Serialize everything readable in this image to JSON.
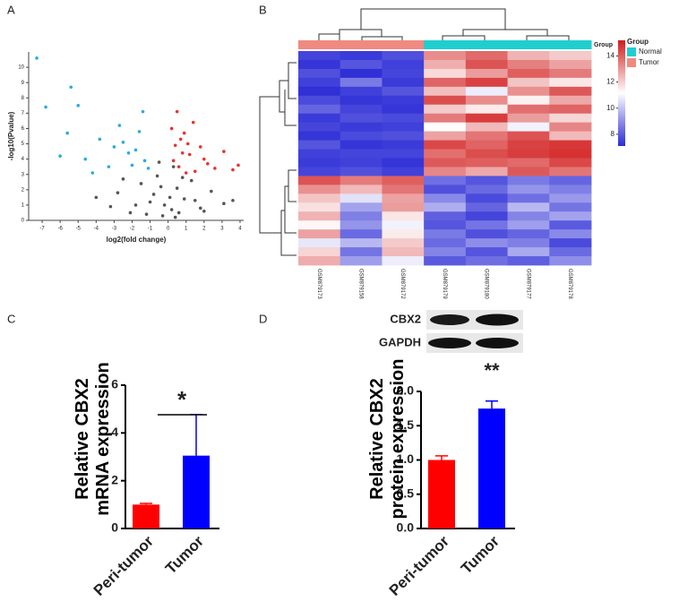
{
  "chart_data": [
    {
      "type": "scatter",
      "panel": "A",
      "xlabel": "log2(fold change)",
      "ylabel": "-log10(Pvalue)",
      "xlim": [
        -7.75,
        4.2
      ],
      "ylim": [
        0,
        11
      ],
      "xticks": [
        -7,
        -6,
        -5,
        -4,
        -3,
        -2,
        -1,
        0,
        1,
        2,
        3,
        4
      ],
      "yticks": [
        0,
        1,
        2,
        3,
        4,
        5,
        6,
        7,
        8,
        9,
        10
      ],
      "series": [
        {
          "color": "#555555",
          "x": [
            -3.2,
            -2.8,
            -2.1,
            -1.5,
            -1.0,
            -0.6,
            -0.3,
            0.2,
            0.5,
            0.9,
            1.3,
            1.8,
            2.4,
            3.1,
            -2.5,
            -1.8,
            -1.2,
            -0.8,
            -0.4,
            0.1,
            0.4,
            0.8,
            1.5,
            2.0,
            -0.5,
            0.3,
            -0.2,
            0.6,
            -4.0,
            3.6
          ],
          "values": [
            0.9,
            1.8,
            0.5,
            2.4,
            1.2,
            2.9,
            0.3,
            0.7,
            2.1,
            1.4,
            2.6,
            0.8,
            1.9,
            1.1,
            2.7,
            1.0,
            0.4,
            1.7,
            2.2,
            1.5,
            0.2,
            2.8,
            1.3,
            0.6,
            3.8,
            3.5,
            1.0,
            0.5,
            1.5,
            1.3
          ]
        },
        {
          "color": "#29abe2",
          "x": [
            -7.3,
            -6.8,
            -5.4,
            -5.0,
            -4.6,
            -3.8,
            -3.3,
            -2.7,
            -2.2,
            -1.6,
            -1.3,
            -1.1,
            -6.0,
            -4.2,
            -3.0,
            -2.0,
            -1.4,
            -5.6,
            -2.5,
            -1.8
          ],
          "values": [
            10.6,
            7.4,
            8.7,
            7.5,
            4.0,
            5.3,
            3.5,
            6.2,
            4.4,
            5.8,
            3.9,
            3.4,
            4.2,
            3.1,
            4.8,
            3.6,
            7.1,
            5.7,
            5.1,
            4.6
          ]
        },
        {
          "color": "#e8322f",
          "x": [
            0.2,
            0.4,
            0.6,
            0.9,
            1.2,
            1.5,
            1.8,
            2.2,
            2.6,
            3.1,
            3.6,
            0.3,
            0.7,
            1.0,
            1.4,
            2.0,
            0.5,
            0.8,
            1.1,
            3.9
          ],
          "values": [
            6.0,
            4.9,
            3.5,
            5.7,
            4.3,
            3.2,
            4.8,
            3.7,
            3.4,
            4.5,
            3.3,
            3.9,
            5.3,
            3.1,
            6.4,
            4.0,
            7.1,
            4.4,
            5.0,
            3.6
          ]
        }
      ]
    },
    {
      "type": "heatmap",
      "panel": "B",
      "annotation_title": "Group",
      "legend_title": "Group",
      "columns": [
        "GSM879173",
        "GSM879158",
        "GSM879172",
        "GSM879179",
        "GSM879180",
        "GSM879177",
        "GSM879178"
      ],
      "column_groups": [
        "Tumor",
        "Tumor",
        "Tumor",
        "Normal",
        "Normal",
        "Normal",
        "Normal"
      ],
      "groups": [
        {
          "name": "Normal",
          "color": "#1fcfcf"
        },
        {
          "name": "Tumor",
          "color": "#f08a80"
        }
      ],
      "colors": [
        "#2b2bd6",
        "#ffffff",
        "#d11b1b"
      ],
      "clim": [
        7.1,
        15.2
      ],
      "cticks": [
        8,
        10,
        12,
        14
      ],
      "values": [
        [
          7.6,
          7.4,
          7.8,
          13.2,
          13.8,
          12.5,
          12.1
        ],
        [
          7.3,
          7.9,
          7.5,
          12.6,
          14.2,
          13.4,
          12.8
        ],
        [
          7.8,
          7.2,
          7.6,
          11.8,
          12.9,
          14.0,
          13.5
        ],
        [
          7.5,
          8.6,
          7.4,
          13.9,
          14.5,
          12.2,
          11.6
        ],
        [
          7.2,
          7.5,
          7.9,
          12.3,
          10.8,
          13.1,
          14.1
        ],
        [
          7.7,
          7.3,
          7.4,
          14.3,
          13.2,
          11.4,
          12.7
        ],
        [
          8.2,
          7.6,
          7.3,
          12.1,
          11.5,
          13.7,
          13.9
        ],
        [
          7.4,
          7.8,
          7.7,
          13.5,
          14.6,
          12.9,
          11.9
        ],
        [
          7.6,
          7.4,
          7.5,
          11.2,
          12.4,
          10.9,
          13.3
        ],
        [
          7.3,
          7.7,
          7.8,
          12.8,
          13.6,
          14.2,
          12.4
        ],
        [
          7.9,
          7.3,
          7.4,
          14.4,
          13.9,
          14.5,
          14.7
        ],
        [
          7.5,
          7.6,
          7.6,
          13.7,
          14.3,
          14.6,
          14.8
        ],
        [
          7.4,
          7.5,
          7.3,
          14.1,
          14.0,
          13.8,
          14.4
        ],
        [
          7.6,
          7.8,
          7.5,
          13.3,
          12.7,
          14.1,
          13.6
        ],
        [
          14.2,
          13.5,
          14.0,
          8.4,
          7.9,
          8.6,
          8.2
        ],
        [
          13.1,
          12.4,
          13.6,
          7.8,
          8.3,
          9.1,
          8.7
        ],
        [
          12.2,
          10.6,
          12.8,
          8.9,
          7.7,
          8.4,
          9.2
        ],
        [
          11.7,
          9.4,
          12.9,
          9.6,
          8.2,
          9.8,
          8.5
        ],
        [
          12.5,
          8.7,
          11.6,
          8.1,
          7.6,
          8.8,
          9.4
        ],
        [
          11.3,
          9.1,
          10.9,
          7.9,
          8.5,
          9.3,
          8.0
        ],
        [
          12.8,
          8.3,
          11.5,
          8.6,
          7.8,
          8.2,
          8.9
        ],
        [
          10.7,
          9.8,
          12.1,
          8.3,
          9.0,
          8.7,
          7.7
        ],
        [
          11.9,
          8.5,
          12.4,
          8.8,
          7.9,
          9.5,
          8.3
        ],
        [
          12.6,
          9.3,
          10.8,
          8.0,
          8.4,
          8.1,
          9.0
        ]
      ]
    },
    {
      "type": "bar",
      "panel": "C",
      "ylabel": "Relative CBX2 mRNA expression",
      "annotation": "*",
      "categories": [
        "Peri-tumor",
        "Tumor"
      ],
      "values": [
        1.0,
        3.05
      ],
      "errors": [
        0.05,
        1.72
      ],
      "colors": [
        "#ff0000",
        "#0000ff"
      ],
      "ylim": [
        0,
        6
      ],
      "yticks": [
        0,
        2,
        4,
        6
      ]
    },
    {
      "type": "bar",
      "panel": "D",
      "ylabel": "Relative CBX2 protein expression",
      "annotation": "**",
      "blot_labels": [
        "CBX2",
        "GAPDH"
      ],
      "categories": [
        "Peri-tumor",
        "Tumor"
      ],
      "values": [
        1.0,
        1.75
      ],
      "errors": [
        0.06,
        0.11
      ],
      "colors": [
        "#ff0000",
        "#0000ff"
      ],
      "ylim": [
        0,
        2
      ],
      "yticks": [
        {
          "value": 0,
          "label": "0.0"
        },
        0.5,
        {
          "value": 1,
          "label": "1.0"
        },
        1.5,
        {
          "value": 2,
          "label": "2.0"
        }
      ]
    }
  ]
}
